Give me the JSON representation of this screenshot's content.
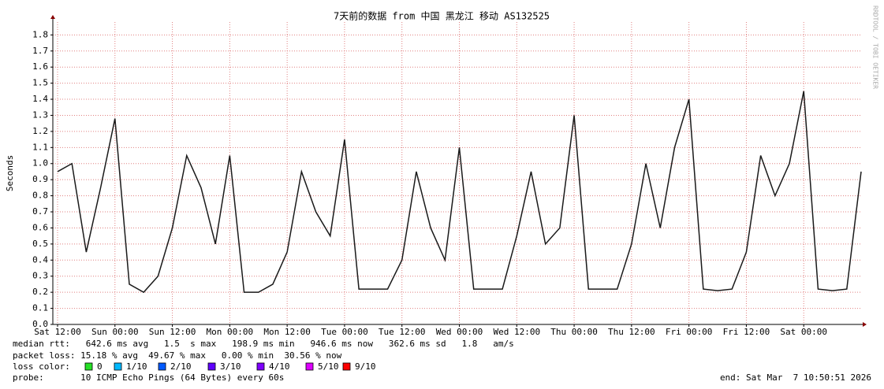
{
  "chart_data": {
    "type": "line",
    "title": "7天前的数据 from 中国 黑龙江 移动 AS132525",
    "ylabel": "Seconds",
    "watermark": "RRDTOOL / TOBI OETIKER",
    "categories": [
      "Sat 12:00",
      null,
      null,
      null,
      "Sun 00:00",
      null,
      null,
      null,
      "Sun 12:00",
      null,
      null,
      null,
      "Mon 00:00",
      null,
      null,
      null,
      "Mon 12:00",
      null,
      null,
      null,
      "Tue 00:00",
      null,
      null,
      null,
      "Tue 12:00",
      null,
      null,
      null,
      "Wed 00:00",
      null,
      null,
      null,
      "Wed 12:00",
      null,
      null,
      null,
      "Thu 00:00",
      null,
      null,
      null,
      "Thu 12:00",
      null,
      null,
      null,
      "Fri 00:00",
      null,
      null,
      null,
      "Fri 12:00",
      null,
      null,
      null,
      "Sat 00:00",
      null,
      null,
      null,
      null
    ],
    "series": [
      {
        "color": "#1a1a1a",
        "values": [
          0.95,
          1.0,
          0.45,
          0.85,
          1.28,
          0.25,
          0.2,
          0.3,
          0.6,
          1.05,
          0.85,
          0.5,
          1.05,
          0.2,
          0.2,
          0.25,
          0.45,
          0.95,
          0.7,
          0.55,
          1.15,
          0.22,
          0.22,
          0.22,
          0.4,
          0.95,
          0.6,
          0.4,
          1.1,
          0.22,
          0.22,
          0.22,
          0.55,
          0.95,
          0.5,
          0.6,
          1.3,
          0.22,
          0.22,
          0.22,
          0.5,
          1.0,
          0.6,
          1.1,
          1.4,
          0.22,
          0.21,
          0.22,
          0.45,
          1.05,
          0.8,
          1.0,
          1.45,
          0.22,
          0.21,
          0.22,
          0.95
        ]
      }
    ],
    "ylim": [
      0,
      1.88
    ],
    "yticks": [
      {
        "value": 0,
        "label": "0.0"
      },
      0.1,
      0.2,
      0.3,
      0.4,
      0.5,
      0.6,
      0.7,
      0.8,
      0.9,
      {
        "value": 1,
        "label": "1.0"
      },
      1.1,
      1.2,
      1.3,
      1.4,
      1.5,
      1.6,
      1.7,
      1.8
    ],
    "grid": true,
    "stats": [
      "median rtt:   642.6 ms avg   1.5  s max   198.9 ms min   946.6 ms now   362.6 ms sd   1.8   am/s",
      "packet loss: 15.18 % avg  49.67 % max   0.00 % min  30.56 % now"
    ],
    "loss_legend_title": "loss color:",
    "loss_legend": [
      {
        "name": "0",
        "color": "#26e026"
      },
      {
        "name": "1/10",
        "color": "#00b8ff"
      },
      {
        "name": "2/10",
        "color": "#0059ff"
      },
      {
        "name": "3/10",
        "color": "#5e00ff"
      },
      {
        "name": "4/10",
        "color": "#7e00ff"
      },
      {
        "name": "5/10",
        "color": "#dd00ff"
      },
      {
        "name": "9/10",
        "color": "#ff0000"
      }
    ],
    "probe": "probe:       10 ICMP Echo Pings (64 Bytes) every 60s",
    "end": "end: Sat Mar  7 10:50:51 2026"
  }
}
